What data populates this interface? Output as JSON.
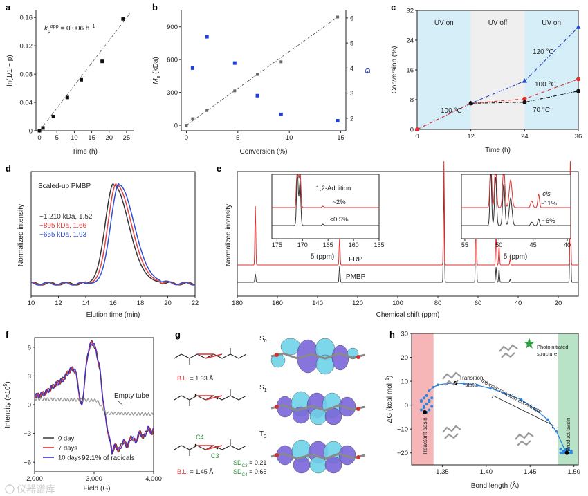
{
  "chart_data": [
    {
      "panel": "a",
      "type": "scatter",
      "letter": "a",
      "xlabel": "Time (h)",
      "ylabel": "ln(1/1 − p)",
      "annotation": "k_p^app = 0.006 h⁻¹",
      "annotation_main": "k",
      "annotation_sub": "p",
      "annotation_sup": "app",
      "annotation_rest": " = 0.006 h",
      "annotation_rest_sup": "−1",
      "xlim": [
        -1,
        27
      ],
      "ylim": [
        0,
        0.17
      ],
      "xticks": [
        "0",
        "5",
        "10",
        "15",
        "20",
        "25"
      ],
      "yticks": [
        "0",
        "0.04",
        "0.08",
        "0.12",
        "0.16"
      ],
      "x": [
        0,
        1,
        4,
        8,
        12,
        18,
        24
      ],
      "y": [
        0,
        0.004,
        0.02,
        0.047,
        0.072,
        0.098,
        0.158
      ],
      "fit": [
        [
          0,
          0
        ],
        [
          26,
          0.166
        ]
      ]
    },
    {
      "panel": "b",
      "type": "scatter",
      "letter": "b",
      "xlabel": "Conversion (%)",
      "ylabel": "M_n (kDa)",
      "ylabel_main": "M",
      "ylabel_sub": "n",
      "ylabel_rest": " (kDa)",
      "y2label": "Đ",
      "xlim": [
        -0.5,
        15.5
      ],
      "ylim": [
        -50,
        1050
      ],
      "y2lim": [
        1.5,
        6.3
      ],
      "xticks": [
        "0",
        "5",
        "10",
        "15"
      ],
      "yticks": [
        "0",
        "300",
        "600",
        "900"
      ],
      "y2ticks": [
        "2",
        "3",
        "4",
        "5",
        "6"
      ],
      "series": [
        {
          "axis": "left",
          "color": "#666666",
          "x": [
            0,
            0.6,
            2,
            4.7,
            6.9,
            9.2,
            14.7
          ],
          "y": [
            0,
            60,
            135,
            315,
            465,
            580,
            990
          ]
        },
        {
          "axis": "right",
          "color": "#1f3fd8",
          "x": [
            0.6,
            2,
            4.7,
            6.9,
            9.2,
            14.7
          ],
          "y": [
            4.0,
            5.25,
            4.2,
            2.9,
            2.15,
            1.9
          ]
        }
      ],
      "fit": [
        [
          0,
          0
        ],
        [
          14.7,
          990
        ]
      ]
    },
    {
      "panel": "c",
      "type": "line",
      "letter": "c",
      "xlabel": "Time (h)",
      "ylabel": "Conversion (%)",
      "xlim": [
        0,
        36
      ],
      "ylim": [
        0,
        32
      ],
      "xticks": [
        "0",
        "12",
        "24",
        "36"
      ],
      "yticks": [
        "0",
        "8",
        "16",
        "24",
        "32"
      ],
      "regions": [
        {
          "label": "UV on",
          "x": [
            0,
            12
          ],
          "color": "#d5eef7"
        },
        {
          "label": "UV off",
          "x": [
            12,
            24
          ],
          "color": "#efefef"
        },
        {
          "label": "UV on",
          "x": [
            24,
            36
          ],
          "color": "#d5eef7"
        }
      ],
      "series": [
        {
          "name": "120 °C",
          "color": "#2548c8",
          "marker": "triangle",
          "x": [
            0,
            12,
            24,
            36
          ],
          "y": [
            0,
            7,
            13,
            27.5
          ]
        },
        {
          "name": "100 °C",
          "color": "#e03030",
          "marker": "circle",
          "x": [
            0,
            12,
            24,
            36
          ],
          "y": [
            0,
            7,
            8.2,
            13.5
          ]
        },
        {
          "name": "70 °C",
          "color": "#111111",
          "marker": "circle",
          "x": [
            12,
            24,
            36
          ],
          "y": [
            7,
            7.3,
            10.3
          ]
        }
      ],
      "labels": [
        "100 °C",
        "120 °C",
        "100 °C",
        "70 °C"
      ]
    },
    {
      "panel": "d",
      "type": "line",
      "letter": "d",
      "xlabel": "Elution time (min)",
      "ylabel": "Normalized intensity",
      "title": "Scaled-up PMBP",
      "xlim": [
        10,
        22
      ],
      "xticks": [
        "10",
        "12",
        "14",
        "16",
        "18",
        "20",
        "22"
      ],
      "series": [
        {
          "name": "~1,210 kDa, 1.52",
          "color": "#333333",
          "peak": 16.05
        },
        {
          "name": "~895 kDa, 1.66",
          "color": "#e04040",
          "peak": 16.25
        },
        {
          "name": "~655 kDa, 1.93",
          "color": "#3050d0",
          "peak": 16.45
        }
      ]
    },
    {
      "panel": "e",
      "type": "line",
      "letter": "e",
      "xlabel": "Chemical shift (ppm)",
      "ylabel": "Normalized intensity",
      "xlim": [
        180,
        10
      ],
      "xticks": [
        "180",
        "160",
        "140",
        "120",
        "100",
        "80",
        "60",
        "40",
        "20"
      ],
      "series": [
        {
          "name": "FRP",
          "color": "#e03030"
        },
        {
          "name": "PMBP",
          "color": "#333333"
        }
      ],
      "peaks": [
        171,
        129,
        77,
        61,
        51,
        49.5,
        44,
        14
      ],
      "inset1": {
        "xticks": [
          "175",
          "170",
          "165",
          "160",
          "155"
        ],
        "labels": [
          "1,2-Addition",
          "~2%",
          "<0.5%"
        ],
        "xlabel": "δ (ppm)"
      },
      "inset2": {
        "xticks": [
          "55",
          "50",
          "45",
          "40"
        ],
        "labels": [
          "cis",
          "~11%",
          "~6%"
        ],
        "xlabel": "δ (ppm)"
      }
    },
    {
      "panel": "f",
      "type": "line",
      "letter": "f",
      "xlabel": "Field (G)",
      "ylabel": "Intensity (×10⁵)",
      "ylabel_main": "Intensity (×10",
      "ylabel_sup": "5",
      "ylabel_end": ")",
      "xlim": [
        2000,
        4000
      ],
      "ylim": [
        -7,
        7
      ],
      "xticks": [
        "2,000",
        "3,000",
        "4,000"
      ],
      "yticks": [
        "6",
        "3",
        "0",
        "−3",
        "−6"
      ],
      "series": [
        {
          "name": "0 day",
          "color": "#444444"
        },
        {
          "name": "7 days",
          "color": "#e03030"
        },
        {
          "name": "10 days",
          "color": "#3a2fd0"
        },
        {
          "name": "Empty tube",
          "color": "#999999"
        }
      ],
      "annotation": "92.1% of radicals"
    },
    {
      "panel": "g",
      "type": "diagram",
      "letter": "g",
      "states": [
        "S0",
        "S1",
        "T0"
      ],
      "state_main": [
        "S",
        "S",
        "T"
      ],
      "state_sub": [
        "0",
        "1",
        "0"
      ],
      "labels": {
        "bl1": "B.L. = 1.33 Å",
        "bl2": "B.L. = 1.45 Å",
        "c4": "C4",
        "c3": "C3",
        "sd1": "SD_C3 = 0.21",
        "sd2": "SD_C4 = 0.65",
        "bl_key": "B.L.",
        "bl1_val": " = 1.33 Å",
        "bl2_val": " = 1.45 Å",
        "sd_main": "SD",
        "sd1_sub": "C3",
        "sd1_val": " = 0.21",
        "sd2_sub": "C4",
        "sd2_val": " = 0.65"
      }
    },
    {
      "panel": "h",
      "type": "line",
      "letter": "h",
      "xlabel": "Bond length (Å)",
      "ylabel": "ΔG (kcal mol⁻¹)",
      "ylabel_main": "ΔG (kcal mol",
      "ylabel_sup": "−1",
      "ylabel_end": ")",
      "xlim": [
        1.315,
        1.505
      ],
      "ylim": [
        -25,
        30
      ],
      "xticks": [
        "1.35",
        "1.40",
        "1.45",
        "1.50"
      ],
      "yticks": [
        "30",
        "20",
        "10",
        "0",
        "−10",
        "−20"
      ],
      "series": [
        {
          "name": "IRC",
          "color": "#2e86de",
          "x": [
            1.335,
            1.34,
            1.345,
            1.355,
            1.365,
            1.375,
            1.39,
            1.405,
            1.42,
            1.44,
            1.455,
            1.47,
            1.48,
            1.49
          ],
          "y": [
            6,
            7.5,
            8.5,
            9,
            9.2,
            9,
            8.3,
            7,
            5.2,
            2.3,
            -1.5,
            -6,
            -11,
            -19
          ]
        }
      ],
      "labels": [
        "Reactant basin",
        "Transition state",
        "Intrinsic reaction coordinate",
        "Photoinitiated structure",
        "Product basin"
      ]
    }
  ],
  "watermark": "仪器谱库"
}
